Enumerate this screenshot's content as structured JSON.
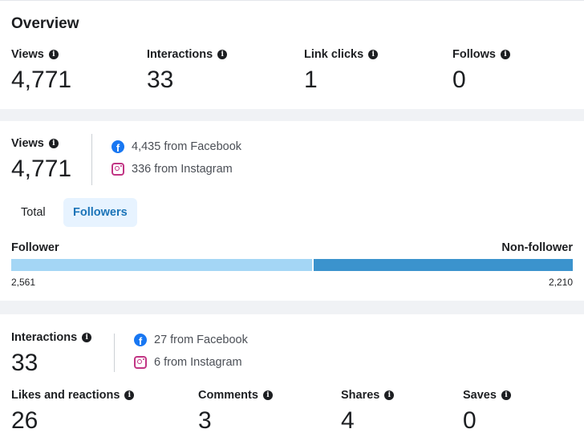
{
  "overview": {
    "title": "Overview",
    "metrics": [
      {
        "label": "Views",
        "value": "4,771"
      },
      {
        "label": "Interactions",
        "value": "33"
      },
      {
        "label": "Link clicks",
        "value": "1"
      },
      {
        "label": "Follows",
        "value": "0"
      }
    ]
  },
  "views_section": {
    "label": "Views",
    "value": "4,771",
    "sources": [
      {
        "platform": "Facebook",
        "icon": "facebook-icon",
        "text": "4,435 from Facebook"
      },
      {
        "platform": "Instagram",
        "icon": "instagram-icon",
        "text": "336 from Instagram"
      }
    ],
    "tabs": [
      {
        "label": "Total",
        "selected": false
      },
      {
        "label": "Followers",
        "selected": true
      }
    ],
    "split": {
      "left_label": "Follower",
      "right_label": "Non-follower",
      "left_value": "2,561",
      "right_value": "2,210",
      "left_count": 2561,
      "right_count": 2210,
      "left_color": "#a4d6f5",
      "right_color": "#3b93cd"
    }
  },
  "interactions_section": {
    "label": "Interactions",
    "value": "33",
    "sources": [
      {
        "platform": "Facebook",
        "icon": "facebook-icon",
        "text": "27 from Facebook"
      },
      {
        "platform": "Instagram",
        "icon": "instagram-icon",
        "text": "6 from Instagram"
      }
    ],
    "metrics": [
      {
        "label": "Likes and reactions",
        "value": "26"
      },
      {
        "label": "Comments",
        "value": "3"
      },
      {
        "label": "Shares",
        "value": "4"
      },
      {
        "label": "Saves",
        "value": "0"
      }
    ]
  },
  "colors": {
    "accent": "#1b74b8",
    "tab_active_bg": "#e7f3ff",
    "facebook": "#1877f2",
    "instagram": "#c13584"
  }
}
